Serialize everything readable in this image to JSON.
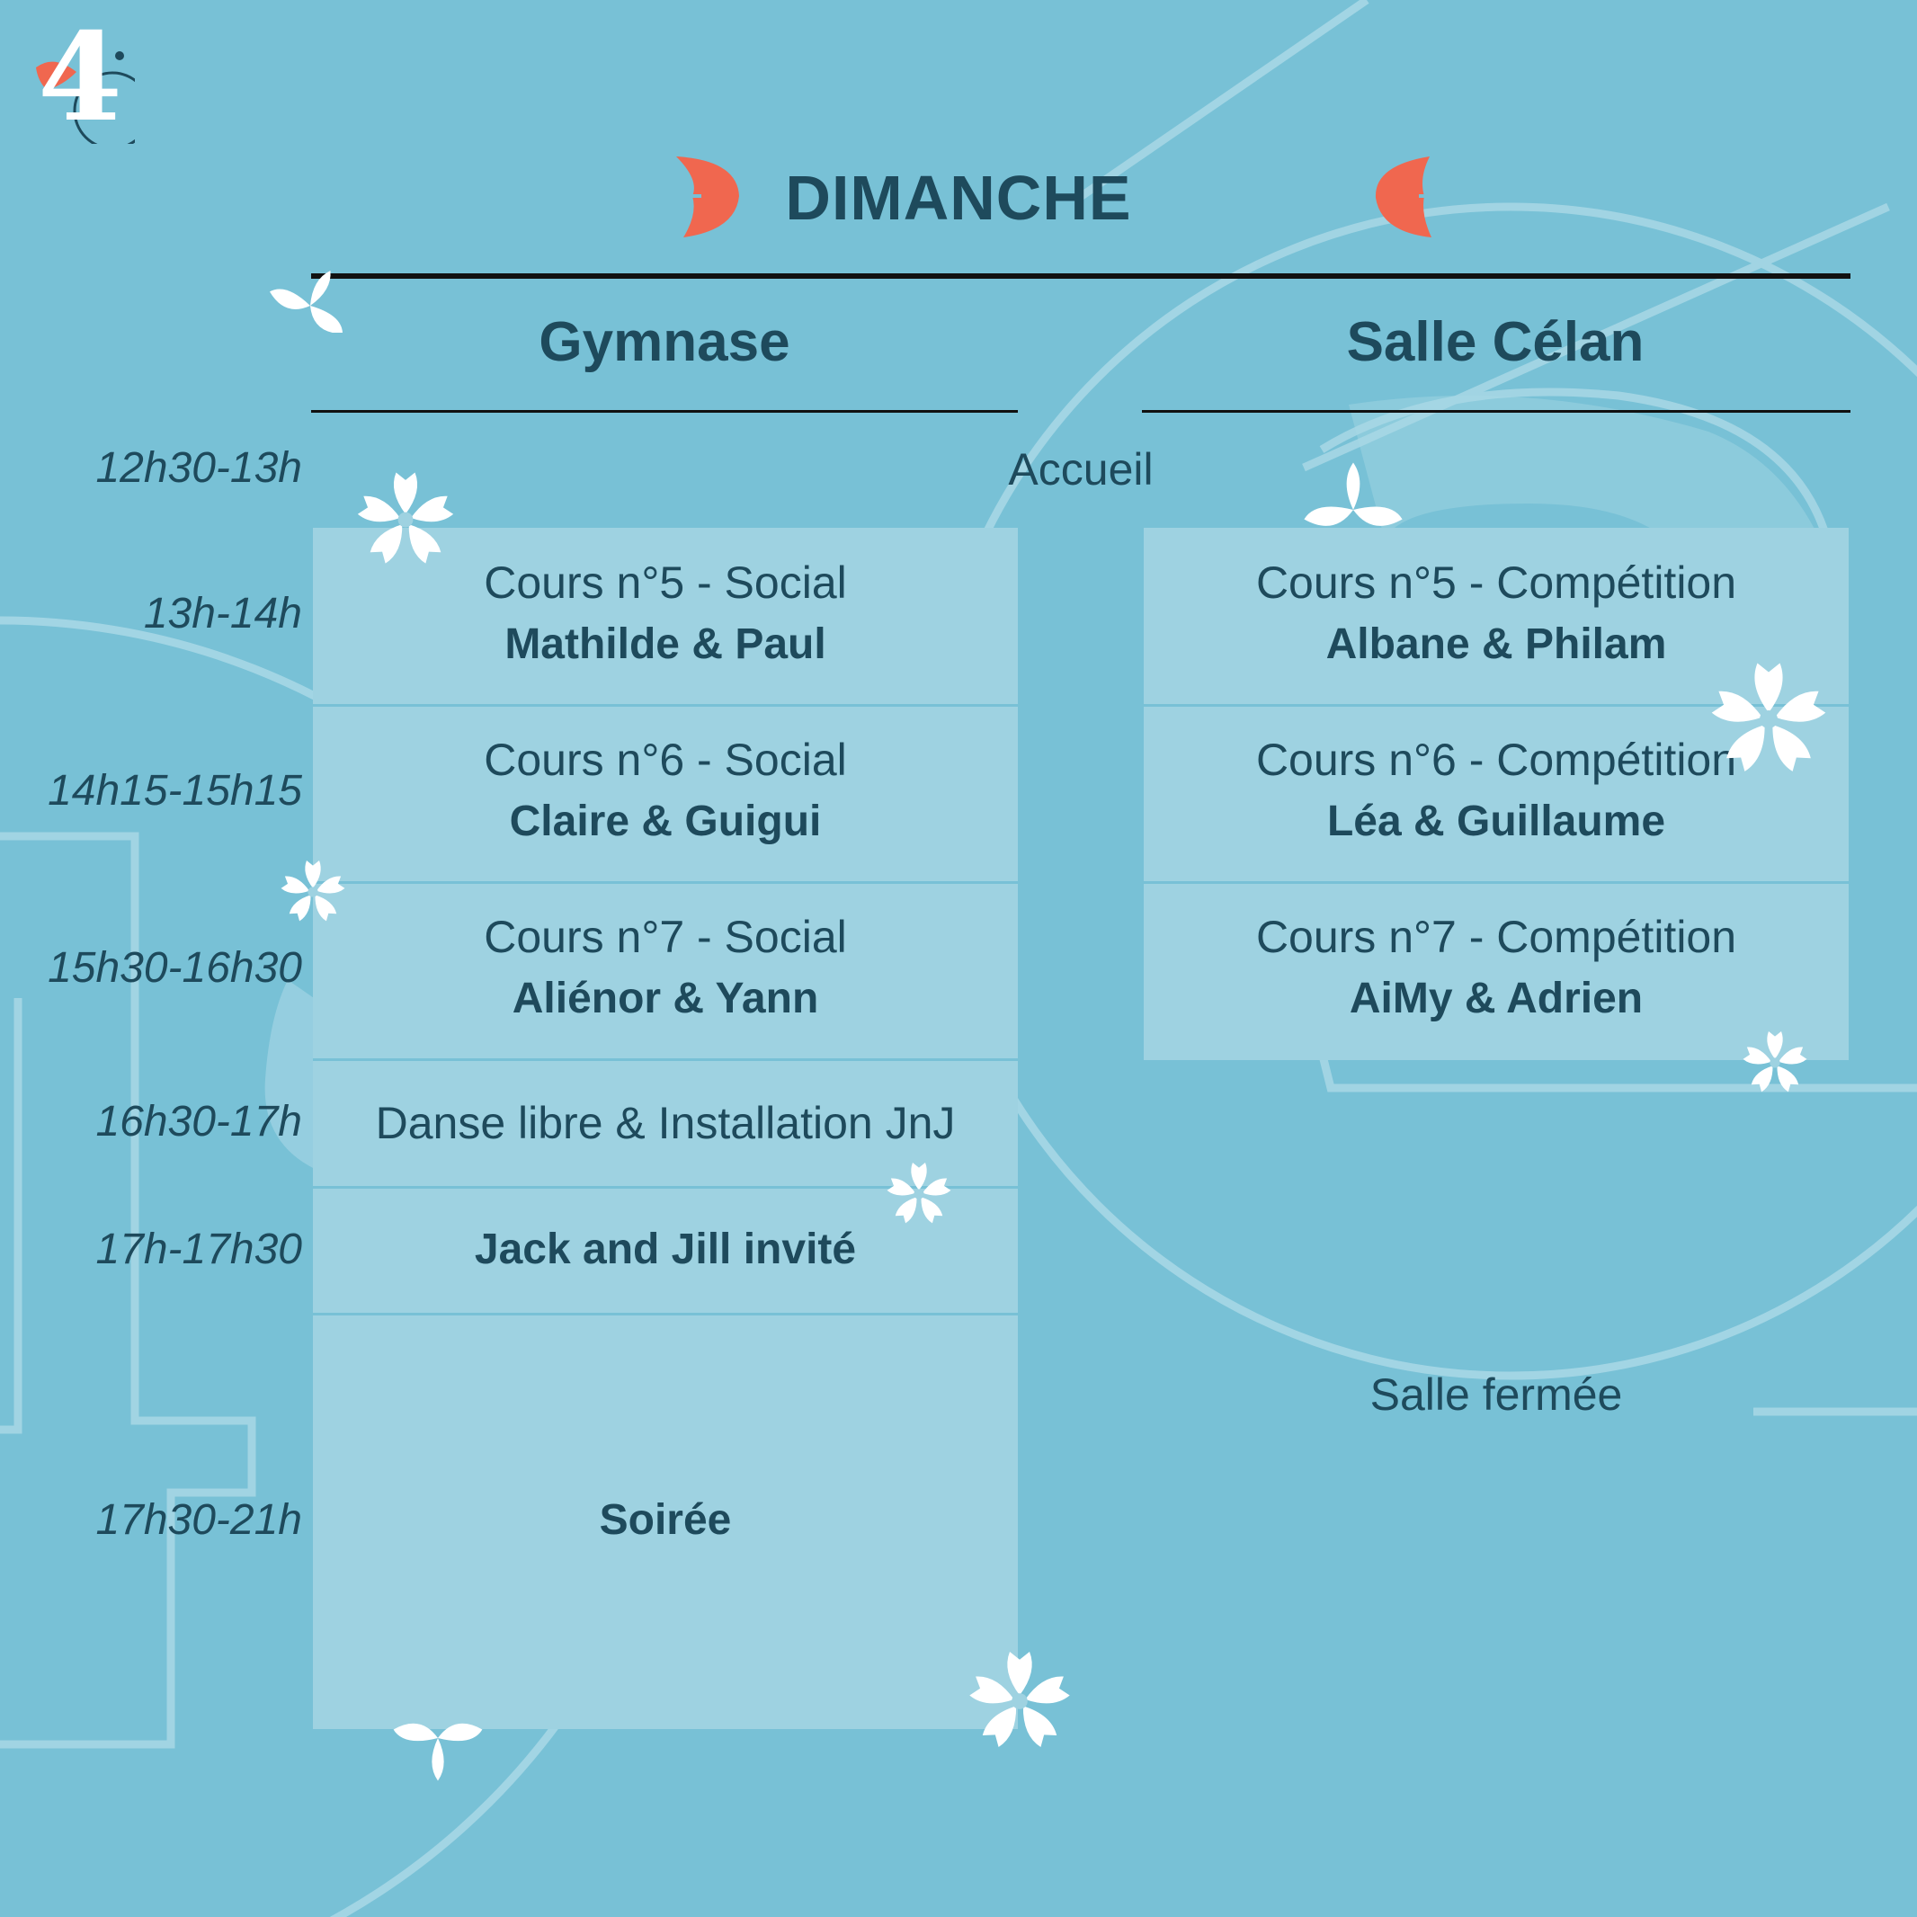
{
  "colors": {
    "background": "#78c1d6",
    "panel": "#9ed2e1",
    "text": "#1e4a5c",
    "accent": "#f0674f",
    "flower": "#ffffff"
  },
  "logo": {
    "digit": "4",
    "icon": "cherry-blossom-logo-icon"
  },
  "day_title": "DIMANCHE",
  "columns": {
    "left": "Gymnase",
    "right": "Salle Célan"
  },
  "schedule": {
    "welcome": {
      "time": "12h30-13h",
      "label": "Accueil"
    },
    "rows": [
      {
        "time": "13h-14h",
        "left_course": "Cours n°5 - Social",
        "left_teachers": "Mathilde & Paul",
        "right_course": "Cours n°5 - Compétition",
        "right_teachers": "Albane & Philam"
      },
      {
        "time": "14h15-15h15",
        "left_course": "Cours n°6 - Social",
        "left_teachers": "Claire & Guigui",
        "right_course": "Cours n°6 - Compétition",
        "right_teachers": "Léa & Guillaume"
      },
      {
        "time": "15h30-16h30",
        "left_course": "Cours n°7 - Social",
        "left_teachers": "Aliénor & Yann",
        "right_course": "Cours n°7 - Compétition",
        "right_teachers": "AiMy & Adrien"
      }
    ],
    "free_dance": {
      "time": "16h30-17h",
      "label": "Danse libre & Installation JnJ"
    },
    "jack_jill": {
      "time": "17h-17h30",
      "label": "Jack and Jill invité"
    },
    "soiree": {
      "time": "17h30-21h",
      "label": "Soirée"
    },
    "room_closed": "Salle fermée"
  }
}
